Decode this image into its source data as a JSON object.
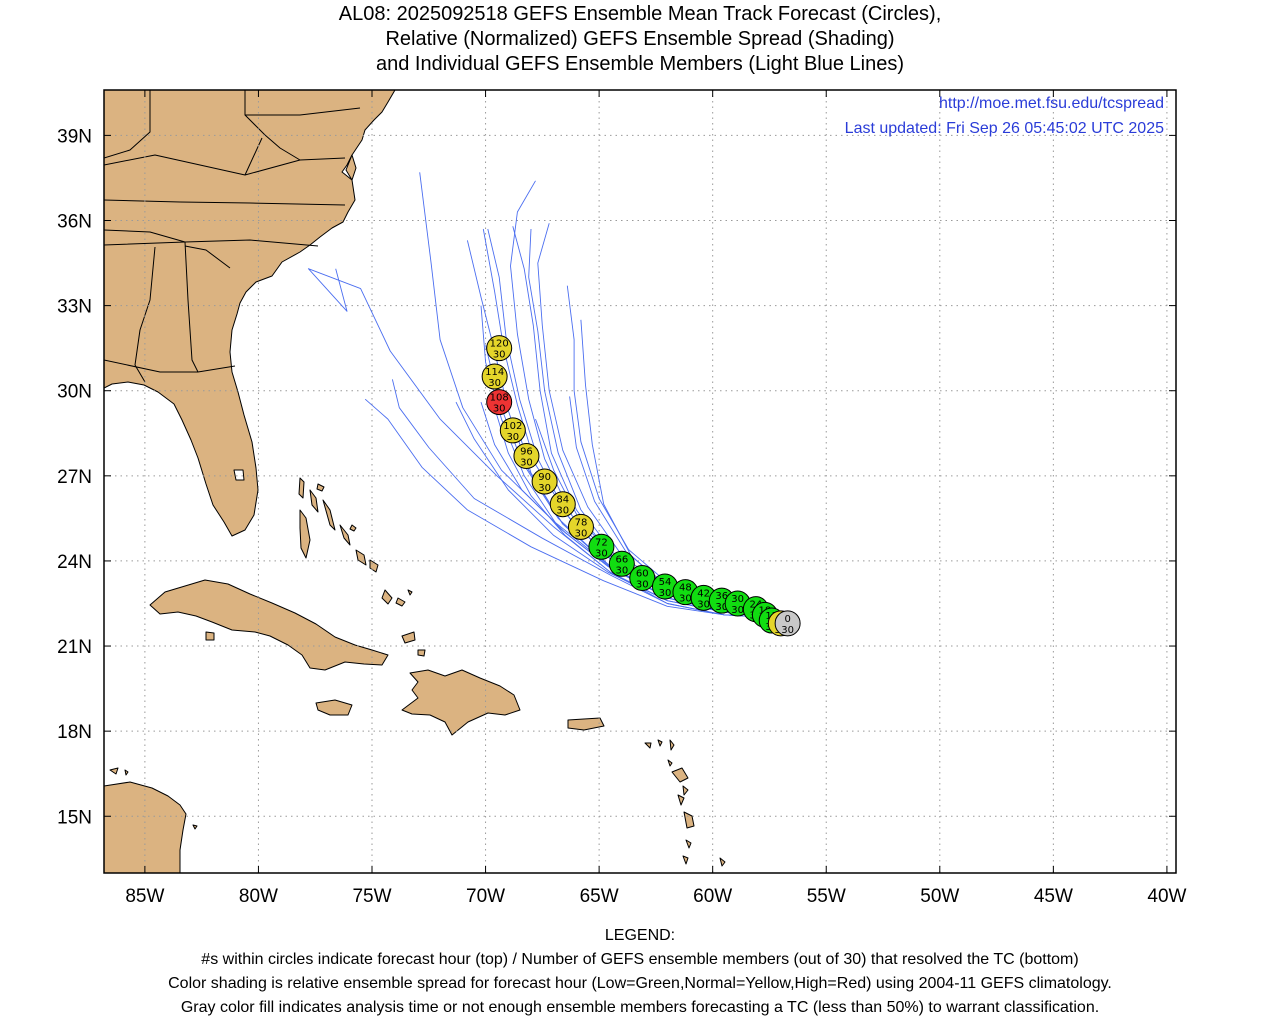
{
  "title": {
    "line1": "AL08: 2025092518 GEFS Ensemble Mean Track Forecast (Circles),",
    "line2": "Relative (Normalized) GEFS Ensemble Spread (Shading)",
    "line3": "and Individual GEFS Ensemble Members (Light Blue Lines)"
  },
  "credits": {
    "url": "http://moe.met.fsu.edu/tcspread",
    "updated": "Last updated: Fri Sep 26 05:45:02 UTC 2025"
  },
  "axes": {
    "lon_ticks": [
      {
        "lon": -85,
        "label": "85W"
      },
      {
        "lon": -80,
        "label": "80W"
      },
      {
        "lon": -75,
        "label": "75W"
      },
      {
        "lon": -70,
        "label": "70W"
      },
      {
        "lon": -65,
        "label": "65W"
      },
      {
        "lon": -60,
        "label": "60W"
      },
      {
        "lon": -55,
        "label": "55W"
      },
      {
        "lon": -50,
        "label": "50W"
      },
      {
        "lon": -45,
        "label": "45W"
      },
      {
        "lon": -40,
        "label": "40W"
      }
    ],
    "lat_ticks": [
      {
        "lat": 39,
        "label": "39N"
      },
      {
        "lat": 36,
        "label": "36N"
      },
      {
        "lat": 33,
        "label": "33N"
      },
      {
        "lat": 30,
        "label": "30N"
      },
      {
        "lat": 27,
        "label": "27N"
      },
      {
        "lat": 24,
        "label": "24N"
      },
      {
        "lat": 21,
        "label": "21N"
      },
      {
        "lat": 18,
        "label": "18N"
      },
      {
        "lat": 15,
        "label": "15N"
      }
    ],
    "lon_range": [
      -86.8,
      -39.6
    ],
    "lat_range": [
      13.0,
      40.6
    ]
  },
  "colors": {
    "land": "#dbb381",
    "member_track": "#4b6ef0",
    "low_spread": "#11dd11",
    "normal_spread": "#e4d52a",
    "high_spread": "#ee3333",
    "analysis": "#c8c8c8",
    "credit_text": "#2a3cd8"
  },
  "mean_track": [
    {
      "hour": "0",
      "members": "30",
      "lon": -56.7,
      "lat": 21.8,
      "spread": "analysis"
    },
    {
      "hour": "6",
      "members": "30",
      "lon": -57.0,
      "lat": 21.8,
      "spread": "normal"
    },
    {
      "hour": "12",
      "members": "30",
      "lon": -57.4,
      "lat": 21.9,
      "spread": "low"
    },
    {
      "hour": "18",
      "members": "30",
      "lon": -57.7,
      "lat": 22.1,
      "spread": "low"
    },
    {
      "hour": "24",
      "members": "30",
      "lon": -58.1,
      "lat": 22.3,
      "spread": "low"
    },
    {
      "hour": "30",
      "members": "30",
      "lon": -58.9,
      "lat": 22.5,
      "spread": "low"
    },
    {
      "hour": "36",
      "members": "30",
      "lon": -59.6,
      "lat": 22.6,
      "spread": "low"
    },
    {
      "hour": "42",
      "members": "30",
      "lon": -60.4,
      "lat": 22.7,
      "spread": "low"
    },
    {
      "hour": "48",
      "members": "30",
      "lon": -61.2,
      "lat": 22.9,
      "spread": "low"
    },
    {
      "hour": "54",
      "members": "30",
      "lon": -62.1,
      "lat": 23.1,
      "spread": "low"
    },
    {
      "hour": "60",
      "members": "30",
      "lon": -63.1,
      "lat": 23.4,
      "spread": "low"
    },
    {
      "hour": "66",
      "members": "30",
      "lon": -64.0,
      "lat": 23.9,
      "spread": "low"
    },
    {
      "hour": "72",
      "members": "30",
      "lon": -64.9,
      "lat": 24.5,
      "spread": "low"
    },
    {
      "hour": "78",
      "members": "30",
      "lon": -65.8,
      "lat": 25.2,
      "spread": "normal"
    },
    {
      "hour": "84",
      "members": "30",
      "lon": -66.6,
      "lat": 26.0,
      "spread": "normal"
    },
    {
      "hour": "90",
      "members": "30",
      "lon": -67.4,
      "lat": 26.8,
      "spread": "normal"
    },
    {
      "hour": "96",
      "members": "30",
      "lon": -68.2,
      "lat": 27.7,
      "spread": "normal"
    },
    {
      "hour": "102",
      "members": "30",
      "lon": -68.8,
      "lat": 28.6,
      "spread": "normal"
    },
    {
      "hour": "108",
      "members": "30",
      "lon": -69.4,
      "lat": 29.6,
      "spread": "high"
    },
    {
      "hour": "114",
      "members": "30",
      "lon": -69.6,
      "lat": 30.5,
      "spread": "normal"
    },
    {
      "hour": "120",
      "members": "30",
      "lon": -69.4,
      "lat": 31.5,
      "spread": "normal"
    }
  ],
  "member_tracks": [
    [
      [
        -57.4,
        22.0
      ],
      [
        -59.5,
        22.1
      ],
      [
        -62.0,
        22.5
      ],
      [
        -64.5,
        23.6
      ],
      [
        -67.0,
        25.2
      ],
      [
        -69.5,
        27.0
      ],
      [
        -72.0,
        29.0
      ],
      [
        -74.2,
        31.4
      ],
      [
        -75.5,
        33.6
      ],
      [
        -77.8,
        34.3
      ],
      [
        -76.1,
        32.8
      ],
      [
        -76.6,
        34.3
      ]
    ],
    [
      [
        -57.4,
        22.0
      ],
      [
        -59.5,
        22.3
      ],
      [
        -62.0,
        22.8
      ],
      [
        -64.3,
        23.9
      ],
      [
        -66.3,
        25.5
      ],
      [
        -67.8,
        27.4
      ],
      [
        -68.6,
        29.5
      ],
      [
        -69.2,
        31.5
      ],
      [
        -69.6,
        33.5
      ],
      [
        -70.1,
        35.7
      ]
    ],
    [
      [
        -57.4,
        22.0
      ],
      [
        -59.5,
        22.3
      ],
      [
        -62.0,
        22.8
      ],
      [
        -64.3,
        24.0
      ],
      [
        -66.2,
        25.6
      ],
      [
        -67.4,
        27.6
      ],
      [
        -68.1,
        29.7
      ],
      [
        -68.6,
        32.0
      ],
      [
        -68.9,
        34.4
      ],
      [
        -68.6,
        36.3
      ],
      [
        -67.8,
        37.4
      ]
    ],
    [
      [
        -57.4,
        22.0
      ],
      [
        -59.5,
        22.2
      ],
      [
        -62.0,
        22.7
      ],
      [
        -64.5,
        23.8
      ],
      [
        -66.6,
        25.3
      ],
      [
        -68.1,
        27.2
      ],
      [
        -69.0,
        29.3
      ],
      [
        -69.6,
        31.4
      ],
      [
        -70.2,
        33.3
      ],
      [
        -70.8,
        35.3
      ]
    ],
    [
      [
        -57.4,
        22.0
      ],
      [
        -59.5,
        22.4
      ],
      [
        -62.0,
        23.0
      ],
      [
        -64.0,
        24.2
      ],
      [
        -65.5,
        25.9
      ],
      [
        -66.6,
        27.9
      ],
      [
        -67.2,
        30.0
      ],
      [
        -67.5,
        32.3
      ],
      [
        -67.7,
        34.5
      ],
      [
        -67.2,
        35.9
      ]
    ],
    [
      [
        -57.4,
        22.0
      ],
      [
        -59.5,
        22.2
      ],
      [
        -62.0,
        22.7
      ],
      [
        -64.5,
        23.8
      ],
      [
        -67.0,
        25.4
      ],
      [
        -69.3,
        27.2
      ],
      [
        -71.0,
        29.4
      ],
      [
        -72.0,
        31.8
      ],
      [
        -72.4,
        34.5
      ],
      [
        -72.9,
        37.7
      ]
    ],
    [
      [
        -57.4,
        22.0
      ],
      [
        -59.5,
        22.1
      ],
      [
        -62.0,
        22.5
      ],
      [
        -64.5,
        23.5
      ],
      [
        -67.5,
        24.8
      ],
      [
        -70.5,
        26.2
      ],
      [
        -72.5,
        28.0
      ],
      [
        -73.8,
        29.4
      ],
      [
        -74.1,
        30.4
      ]
    ],
    [
      [
        -57.4,
        22.0
      ],
      [
        -59.5,
        22.1
      ],
      [
        -62.0,
        22.4
      ],
      [
        -64.8,
        23.3
      ],
      [
        -68.0,
        24.5
      ],
      [
        -70.8,
        25.8
      ],
      [
        -72.8,
        27.3
      ],
      [
        -74.3,
        29.0
      ],
      [
        -75.3,
        29.7
      ]
    ],
    [
      [
        -57.4,
        22.0
      ],
      [
        -59.5,
        22.3
      ],
      [
        -61.8,
        22.9
      ],
      [
        -63.6,
        24.2
      ],
      [
        -64.8,
        26.0
      ],
      [
        -65.3,
        28.1
      ],
      [
        -65.6,
        30.2
      ],
      [
        -65.8,
        32.5
      ]
    ],
    [
      [
        -57.4,
        22.0
      ],
      [
        -59.5,
        22.4
      ],
      [
        -61.8,
        23.1
      ],
      [
        -63.7,
        24.4
      ],
      [
        -65.0,
        26.2
      ],
      [
        -65.8,
        28.2
      ],
      [
        -66.1,
        30.0
      ],
      [
        -66.1,
        31.8
      ],
      [
        -66.4,
        33.7
      ]
    ],
    [
      [
        -57.4,
        22.0
      ],
      [
        -59.5,
        22.3
      ],
      [
        -62.0,
        22.8
      ],
      [
        -64.3,
        24.0
      ],
      [
        -66.0,
        25.8
      ],
      [
        -67.1,
        27.8
      ],
      [
        -67.6,
        30.0
      ],
      [
        -67.9,
        32.3
      ],
      [
        -68.3,
        34.3
      ],
      [
        -68.8,
        35.8
      ]
    ],
    [
      [
        -57.4,
        22.0
      ],
      [
        -59.5,
        22.3
      ],
      [
        -62.0,
        22.8
      ],
      [
        -64.4,
        24.0
      ],
      [
        -66.4,
        25.6
      ],
      [
        -67.7,
        27.6
      ],
      [
        -68.5,
        29.7
      ],
      [
        -69.1,
        31.9
      ],
      [
        -69.4,
        34.0
      ],
      [
        -69.9,
        35.7
      ]
    ],
    [
      [
        -57.4,
        22.0
      ],
      [
        -59.5,
        22.2
      ],
      [
        -62.0,
        22.7
      ],
      [
        -64.6,
        23.8
      ],
      [
        -66.8,
        25.2
      ],
      [
        -68.3,
        27.0
      ],
      [
        -69.3,
        29.0
      ],
      [
        -70.0,
        31.0
      ],
      [
        -70.2,
        33.0
      ]
    ],
    [
      [
        -57.4,
        22.0
      ],
      [
        -59.5,
        22.2
      ],
      [
        -62.0,
        22.6
      ],
      [
        -64.6,
        23.6
      ],
      [
        -67.0,
        24.9
      ],
      [
        -69.0,
        26.5
      ],
      [
        -70.5,
        28.3
      ],
      [
        -71.3,
        29.6
      ]
    ],
    [
      [
        -57.4,
        22.0
      ],
      [
        -59.5,
        22.2
      ],
      [
        -62.0,
        22.7
      ],
      [
        -64.4,
        23.7
      ],
      [
        -66.5,
        25.0
      ],
      [
        -68.4,
        26.5
      ],
      [
        -69.6,
        28.1
      ],
      [
        -70.2,
        29.6
      ]
    ],
    [
      [
        -57.4,
        22.0
      ],
      [
        -59.5,
        22.3
      ],
      [
        -62.0,
        22.9
      ],
      [
        -64.2,
        24.1
      ],
      [
        -65.8,
        25.8
      ],
      [
        -66.8,
        27.8
      ],
      [
        -67.4,
        30.0
      ],
      [
        -67.7,
        32.1
      ],
      [
        -68.1,
        34.0
      ],
      [
        -68.0,
        35.7
      ]
    ],
    [
      [
        -57.4,
        22.0
      ],
      [
        -59.5,
        22.2
      ],
      [
        -62.0,
        22.6
      ],
      [
        -64.5,
        23.6
      ],
      [
        -66.5,
        24.9
      ],
      [
        -68.0,
        26.3
      ],
      [
        -69.0,
        27.8
      ],
      [
        -69.6,
        29.4
      ]
    ],
    [
      [
        -57.4,
        22.0
      ],
      [
        -59.5,
        22.2
      ],
      [
        -62.0,
        22.7
      ],
      [
        -64.5,
        23.8
      ],
      [
        -66.8,
        25.5
      ],
      [
        -68.4,
        27.5
      ],
      [
        -69.4,
        29.6
      ],
      [
        -70.0,
        31.6
      ]
    ],
    [
      [
        -57.4,
        22.0
      ],
      [
        -59.5,
        22.3
      ],
      [
        -62.0,
        22.9
      ],
      [
        -64.2,
        24.0
      ],
      [
        -65.9,
        25.5
      ],
      [
        -67.0,
        27.2
      ],
      [
        -67.8,
        29.0
      ]
    ],
    [
      [
        -57.4,
        22.0
      ],
      [
        -59.5,
        22.2
      ],
      [
        -62.0,
        22.7
      ],
      [
        -64.5,
        23.8
      ],
      [
        -66.6,
        25.3
      ],
      [
        -68.0,
        27.1
      ],
      [
        -68.7,
        29.0
      ]
    ],
    [
      [
        -57.4,
        22.0
      ],
      [
        -59.5,
        22.4
      ],
      [
        -61.8,
        23.0
      ],
      [
        -63.8,
        24.3
      ],
      [
        -65.2,
        26.1
      ],
      [
        -66.0,
        28.0
      ],
      [
        -66.3,
        29.8
      ]
    ]
  ],
  "legend": {
    "heading": "LEGEND:",
    "line1": "#s within circles indicate forecast hour (top) / Number of GEFS ensemble members (out of 30) that resolved the TC (bottom)",
    "line2": "Color shading is relative ensemble spread for forecast hour (Low=Green,Normal=Yellow,High=Red) using 2004-11 GEFS climatology.",
    "line3": "Gray color fill indicates analysis time or not enough ensemble members forecasting a TC (less than 50%) to warrant classification."
  }
}
